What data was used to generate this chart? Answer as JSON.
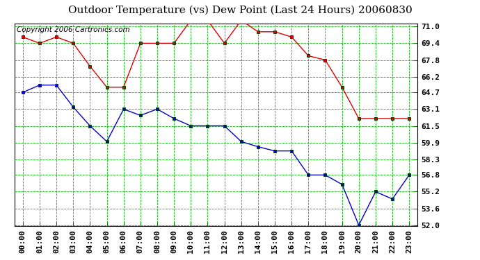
{
  "title": "Outdoor Temperature (vs) Dew Point (Last 24 Hours) 20060830",
  "copyright": "Copyright 2006 Cartronics.com",
  "xlabel_hours": [
    "00:00",
    "01:00",
    "02:00",
    "03:00",
    "04:00",
    "05:00",
    "06:00",
    "07:00",
    "08:00",
    "09:00",
    "10:00",
    "11:00",
    "12:00",
    "13:00",
    "14:00",
    "15:00",
    "16:00",
    "17:00",
    "18:00",
    "19:00",
    "20:00",
    "21:00",
    "22:00",
    "23:00"
  ],
  "temp_red": [
    70.0,
    69.4,
    70.0,
    69.4,
    67.2,
    65.2,
    65.2,
    69.4,
    69.4,
    69.4,
    71.6,
    71.6,
    69.4,
    71.6,
    70.5,
    70.5,
    70.0,
    68.2,
    67.8,
    65.2,
    62.2,
    62.2,
    62.2,
    62.2
  ],
  "dew_blue": [
    64.7,
    65.4,
    65.4,
    63.3,
    61.5,
    60.0,
    63.1,
    62.5,
    63.1,
    62.2,
    61.5,
    61.5,
    61.5,
    60.0,
    59.5,
    59.1,
    59.1,
    56.8,
    56.8,
    55.9,
    52.0,
    55.2,
    54.5,
    56.8
  ],
  "ylim_min": 52.0,
  "ylim_max": 71.0,
  "yticks": [
    52.0,
    53.6,
    55.2,
    56.8,
    58.3,
    59.9,
    61.5,
    63.1,
    64.7,
    66.2,
    67.8,
    69.4,
    71.0
  ],
  "bg_color": "#ffffff",
  "plot_bg_color": "#ffffff",
  "grid_color": "#00bb00",
  "temp_color": "#dd0000",
  "dew_color": "#0000cc",
  "marker_edge_color": "#004400",
  "title_fontsize": 11,
  "axis_fontsize": 8,
  "copyright_fontsize": 7.5
}
